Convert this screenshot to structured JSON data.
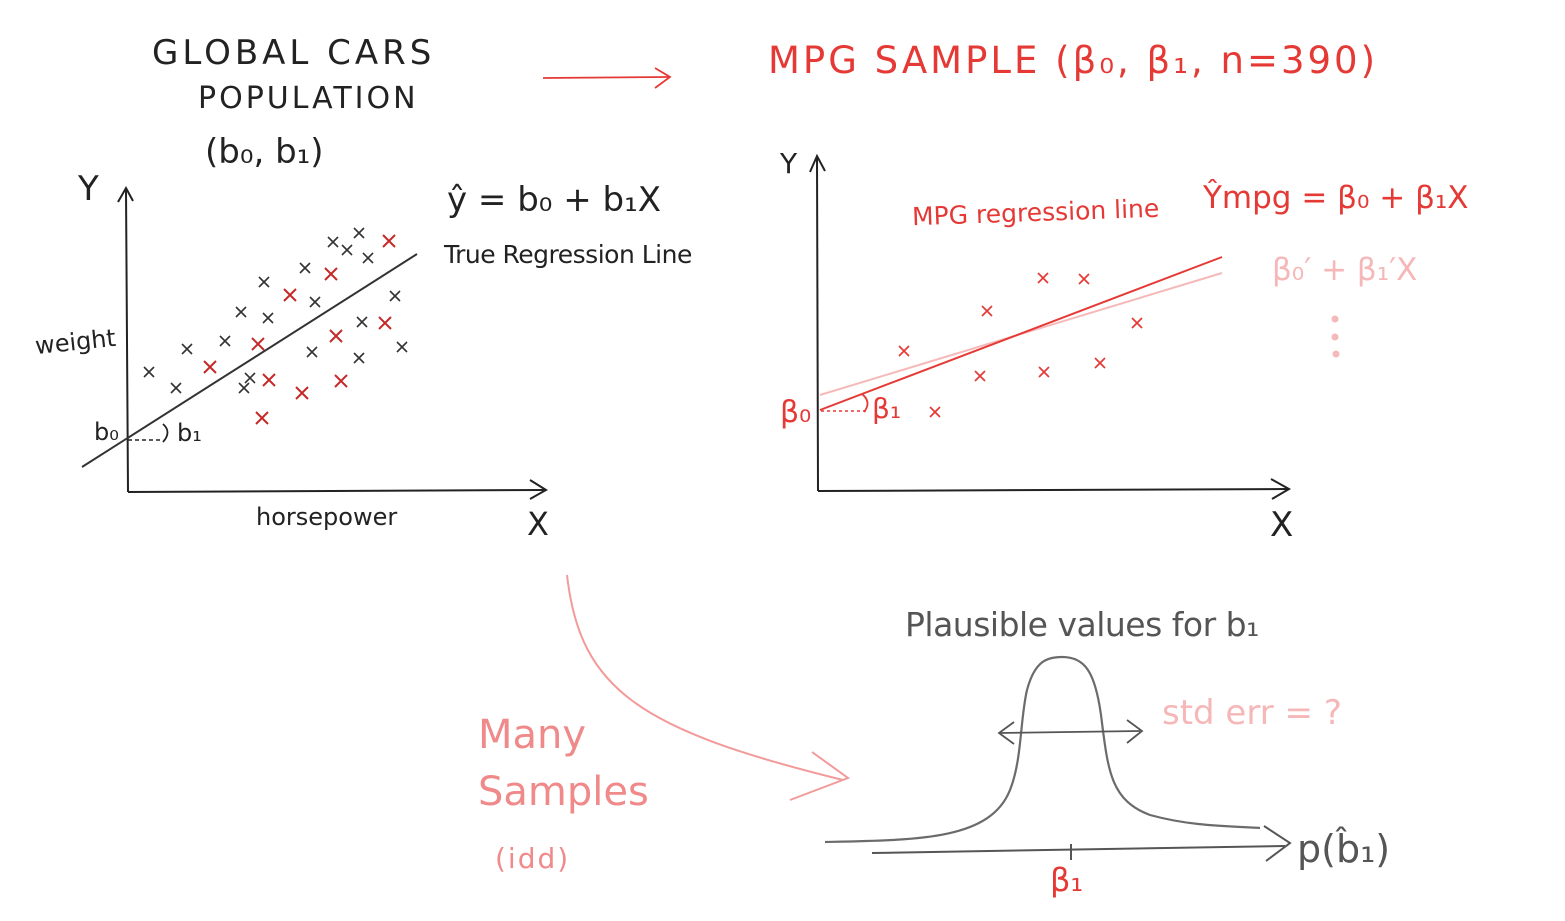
{
  "colors": {
    "black": "#222222",
    "red": "#e53935",
    "crimson": "#c62828",
    "pink": "#f08a8a",
    "light_pink": "#f6b9b9",
    "gray": "#555555",
    "background": "#ffffff"
  },
  "population": {
    "title_line1": "GLOBAL CARS",
    "title_line2": "POPULATION",
    "params": "(b₀, b₁)",
    "y_axis": "Y",
    "x_axis": "X",
    "y_label": "weight",
    "x_label": "horsepower",
    "intercept": "b₀",
    "slope": "b₁",
    "equation": "ŷ = b₀ + b₁X",
    "line_label": "True Regression Line"
  },
  "sample": {
    "title": "MPG SAMPLE (β₀, β₁, n=390)",
    "y_axis": "Y",
    "x_axis": "X",
    "line_label": "MPG regression line",
    "equation": "Ŷmpg = β₀ + β₁X",
    "alt_equation": "β₀′ + β₁′X",
    "intercept": "β₀",
    "slope": "β₁"
  },
  "sampling": {
    "label_line1": "Many",
    "label_line2": "Samples",
    "label_line3": "(idd)"
  },
  "distribution": {
    "title": "Plausible values for b₁",
    "std_err": "std err = ?",
    "center": "β₁",
    "axis_label": "p(b̂₁)"
  }
}
